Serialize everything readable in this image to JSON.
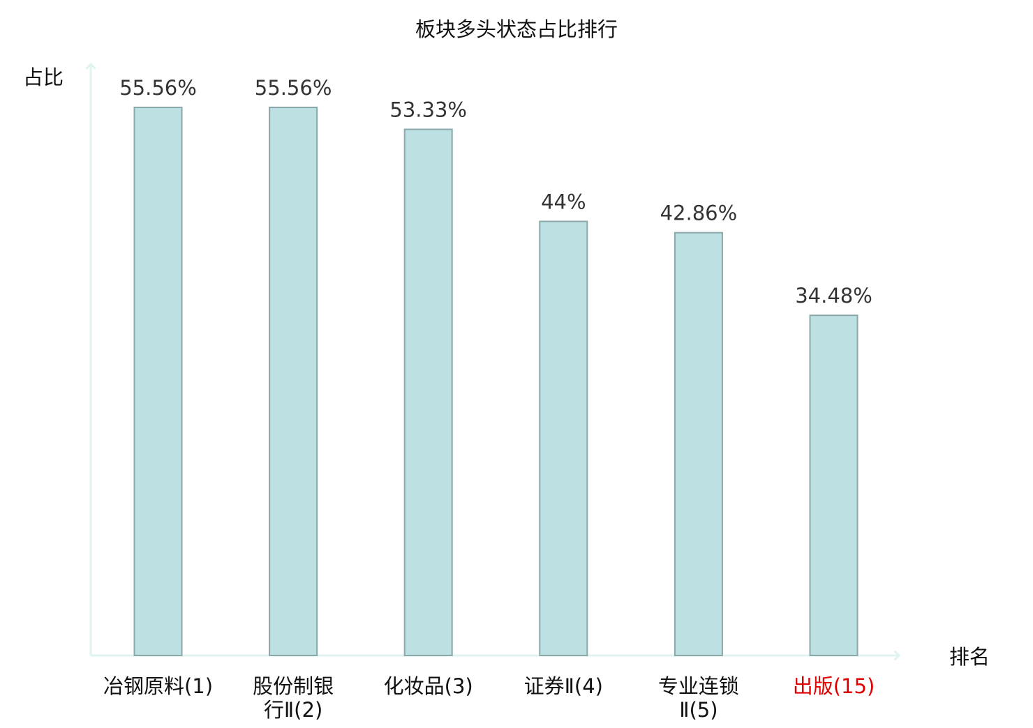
{
  "chart_data": {
    "type": "bar",
    "title": "板块多头状态占比排行",
    "xlabel": "排名",
    "ylabel": "占比",
    "categories": [
      [
        "冶钢原料(1)"
      ],
      [
        "股份制银",
        "行Ⅱ(2)"
      ],
      [
        "化妆品(3)"
      ],
      [
        "证券Ⅱ(4)"
      ],
      [
        "专业连锁",
        "Ⅱ(5)"
      ],
      [
        "出版(15)"
      ]
    ],
    "values": [
      55.56,
      55.56,
      53.33,
      44,
      42.86,
      34.48
    ],
    "value_labels": [
      "55.56%",
      "55.56%",
      "53.33%",
      "44%",
      "42.86%",
      "34.48%"
    ],
    "highlight": [
      false,
      false,
      false,
      false,
      false,
      true
    ],
    "ylim": [
      0,
      60
    ],
    "grid": false,
    "legend": "none",
    "colors": {
      "bar_fill": "#bde0e3",
      "bar_stroke": "#8aa7aa",
      "axis": "#e0f3f0",
      "text": "#111111",
      "value_label": "#333333",
      "highlight_text": "#e00000"
    }
  }
}
